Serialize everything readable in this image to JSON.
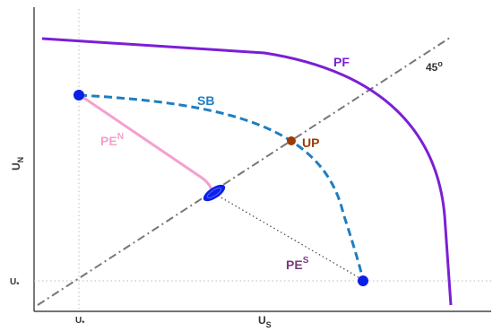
{
  "diagram": {
    "labels": {
      "pf": "PF",
      "sb": "SB",
      "up": "UP",
      "pe_n": "PE",
      "pe_n_sup": "N",
      "pe_s": "PE",
      "pe_s_sup": "S",
      "deg45": "45",
      "deg45_sup": "o"
    },
    "axes": {
      "x_label": "U",
      "x_sub": "S",
      "y_label": "U",
      "y_sub": "N",
      "x_tick": "U",
      "x_tick_sub": "*",
      "y_tick": "U",
      "y_tick_sub": "*"
    },
    "colors": {
      "pf": "#7b1fd6",
      "sb": "#1f7ec1",
      "up": "#9a3b0a",
      "pe_n": "#f4a0cf",
      "pe_s": "#7a3a7e",
      "points": "#0a1fe8",
      "diagonal": "#777777",
      "axis": "#222222",
      "guides": "#bbbbbb"
    }
  }
}
